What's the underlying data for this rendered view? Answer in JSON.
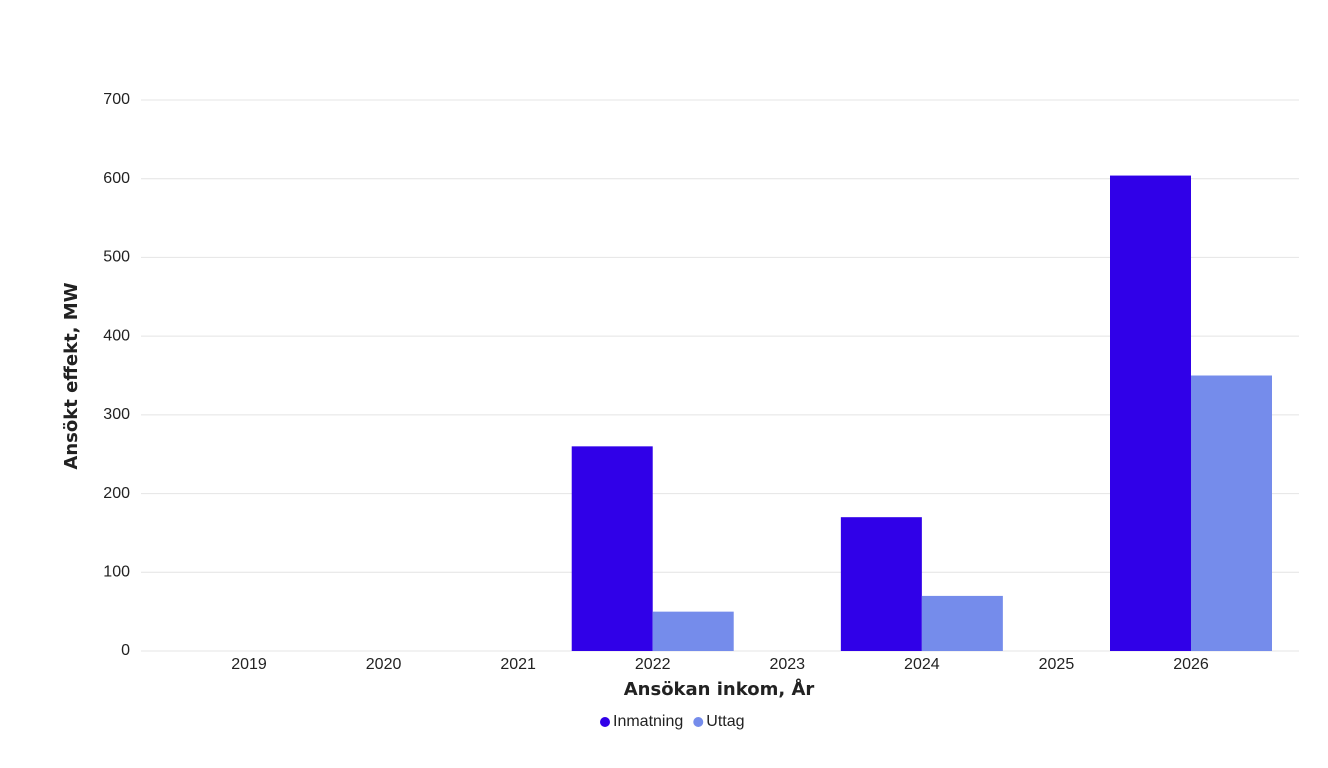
{
  "chart_data": {
    "type": "bar",
    "x_label": "Ansökan inkom, År",
    "y_label": "Ansökt effekt, MW",
    "categories": [
      "2019",
      "2020",
      "2021",
      "2022",
      "2023",
      "2024",
      "2025",
      "2026"
    ],
    "series": [
      {
        "name": "Inmatning",
        "color": "#3000e8",
        "values": [
          null,
          null,
          null,
          260,
          null,
          170,
          null,
          604
        ]
      },
      {
        "name": "Uttag",
        "color": "#758ceb",
        "values": [
          null,
          null,
          null,
          50,
          null,
          70,
          null,
          350
        ]
      }
    ],
    "ylim": [
      0,
      700
    ],
    "yticks": [
      0,
      100,
      200,
      300,
      400,
      500,
      600,
      700
    ],
    "grid": true,
    "legend": "bottom"
  }
}
